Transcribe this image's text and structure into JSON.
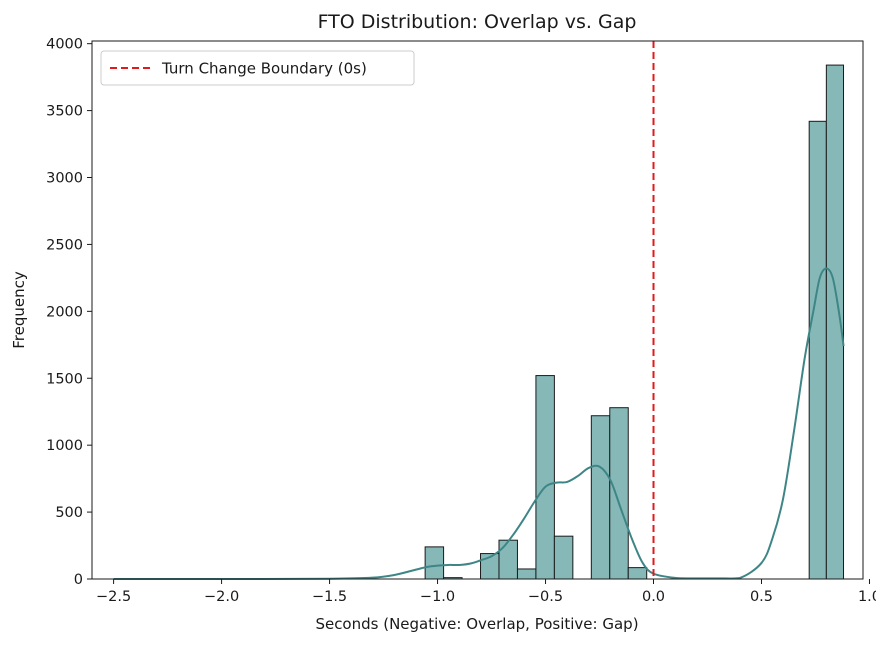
{
  "chart_data": {
    "type": "bar",
    "title": "FTO Distribution: Overlap vs. Gap",
    "xlabel": "Seconds (Negative: Overlap, Positive: Gap)",
    "ylabel": "Frequency",
    "xlim": [
      -2.6,
      0.97
    ],
    "ylim": [
      0,
      4020
    ],
    "x_ticks": [
      {
        "value": -2.5,
        "label": "−2.5"
      },
      {
        "value": -2.0,
        "label": "−2.0"
      },
      {
        "value": -1.5,
        "label": "−1.5"
      },
      {
        "value": -1.0,
        "label": "−1.0"
      },
      {
        "value": -0.5,
        "label": "−0.5"
      },
      {
        "value": 0.0,
        "label": "0.0"
      },
      {
        "value": 0.5,
        "label": "0.5"
      },
      {
        "value": 1.0,
        "label": "1.0"
      }
    ],
    "y_ticks": [
      {
        "value": 0,
        "label": "0"
      },
      {
        "value": 500,
        "label": "500"
      },
      {
        "value": 1000,
        "label": "1000"
      },
      {
        "value": 1500,
        "label": "1500"
      },
      {
        "value": 2000,
        "label": "2000"
      },
      {
        "value": 2500,
        "label": "2500"
      },
      {
        "value": 3000,
        "label": "3000"
      },
      {
        "value": 3500,
        "label": "3500"
      },
      {
        "value": 4000,
        "label": "4000"
      }
    ],
    "bins": [
      {
        "x0": -1.0575,
        "x1": -0.972,
        "count": 240
      },
      {
        "x0": -0.972,
        "x1": -0.8865,
        "count": 10
      },
      {
        "x0": -0.801,
        "x1": -0.7155,
        "count": 190
      },
      {
        "x0": -0.7155,
        "x1": -0.63,
        "count": 290
      },
      {
        "x0": -0.63,
        "x1": -0.5445,
        "count": 75
      },
      {
        "x0": -0.5445,
        "x1": -0.459,
        "count": 1520
      },
      {
        "x0": -0.459,
        "x1": -0.3735,
        "count": 320
      },
      {
        "x0": -0.288,
        "x1": -0.2025,
        "count": 1220
      },
      {
        "x0": -0.2025,
        "x1": -0.117,
        "count": 1280
      },
      {
        "x0": -0.117,
        "x1": -0.0315,
        "count": 85
      },
      {
        "x0": 0.7208,
        "x1": 0.8003,
        "count": 3420
      },
      {
        "x0": 0.8003,
        "x1": 0.8798,
        "count": 3840
      }
    ],
    "kde": {
      "x": [
        -2.5,
        -2.0,
        -1.5,
        -1.3,
        -1.2,
        -1.1,
        -1.05,
        -1.0,
        -0.95,
        -0.9,
        -0.85,
        -0.8,
        -0.75,
        -0.7,
        -0.65,
        -0.6,
        -0.55,
        -0.5,
        -0.45,
        -0.4,
        -0.35,
        -0.3,
        -0.25,
        -0.2,
        -0.15,
        -0.1,
        -0.05,
        0.0,
        0.1,
        0.2,
        0.3,
        0.4,
        0.5,
        0.55,
        0.6,
        0.65,
        0.7,
        0.74,
        0.77,
        0.8,
        0.83,
        0.86,
        0.88
      ],
      "y": [
        0,
        0,
        2,
        10,
        30,
        70,
        90,
        100,
        105,
        105,
        115,
        140,
        170,
        230,
        330,
        450,
        580,
        690,
        720,
        725,
        770,
        830,
        840,
        740,
        520,
        300,
        120,
        40,
        8,
        5,
        5,
        8,
        120,
        300,
        600,
        1100,
        1650,
        2000,
        2250,
        2320,
        2250,
        1980,
        1740
      ]
    },
    "reference_line": {
      "x": 0,
      "label": "Turn Change Boundary (0s)",
      "color": "#e31a1c",
      "style": "dashed"
    },
    "bar_fill": "#86b8b8",
    "bar_edge": "#1a1a1a",
    "kde_color": "#3e8686",
    "legend": {
      "position": "top-left",
      "entries": [
        "Turn Change Boundary (0s)"
      ]
    },
    "grid": false
  }
}
